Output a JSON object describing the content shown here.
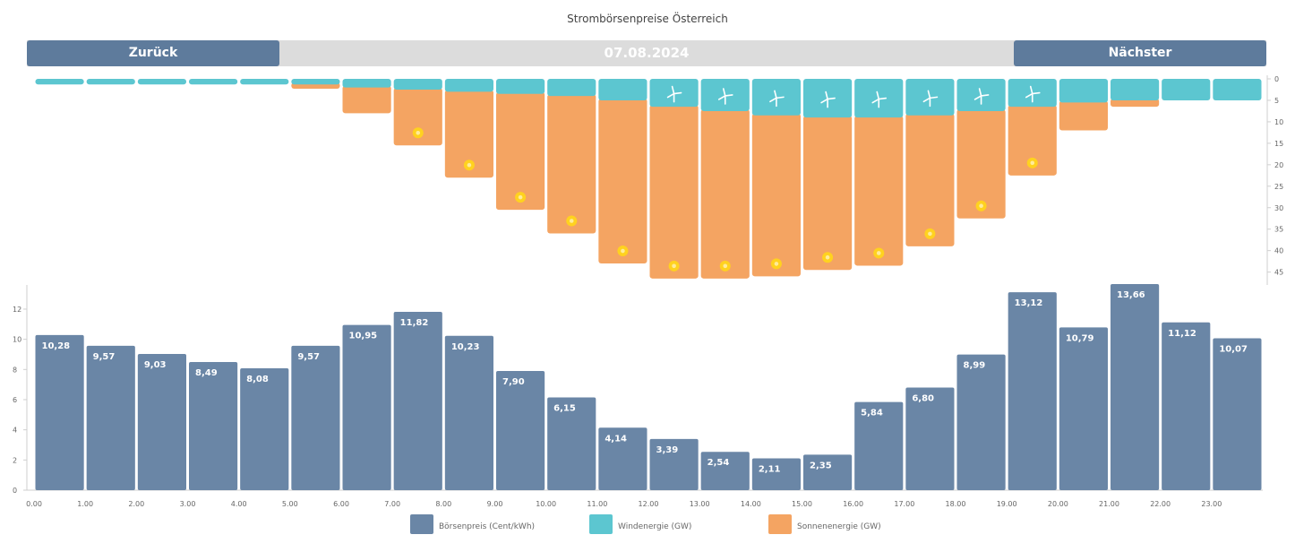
{
  "page": {
    "title": "Strombörsenpreise Österreich"
  },
  "nav": {
    "prev_label": "Zurück",
    "date": "07.08.2024",
    "next_label": "Nächster"
  },
  "chart_data": [
    {
      "type": "bar",
      "title": "",
      "categories": [
        "0:00",
        "1:00",
        "2:00",
        "3:00",
        "4:00",
        "5:00",
        "6:00",
        "7:00",
        "8:00",
        "9:00",
        "10:00",
        "11:00",
        "12:00",
        "13:00",
        "14:00",
        "15:00",
        "16:00",
        "17:00",
        "18:00",
        "19:00",
        "20:00",
        "21:00",
        "22:00",
        "23:00"
      ],
      "x_tick_labels": [
        "0.00",
        "1.00",
        "2.00",
        "3.00",
        "4.00",
        "5.00",
        "6.00",
        "7.00",
        "8.00",
        "9.00",
        "10.00",
        "11.00",
        "12.00",
        "13.00",
        "14.00",
        "15.00",
        "16.00",
        "17.00",
        "18.00",
        "19.00",
        "20.00",
        "21.00",
        "22.00",
        "23.00"
      ],
      "series": [
        {
          "name": "Börsenpreis (Cent/kWh)",
          "values": [
            10.28,
            9.57,
            9.03,
            8.49,
            8.08,
            9.57,
            10.95,
            11.82,
            10.23,
            7.9,
            6.15,
            4.14,
            3.39,
            2.54,
            2.11,
            2.35,
            5.84,
            6.8,
            8.99,
            13.12,
            10.79,
            13.66,
            11.12,
            10.07
          ],
          "labels": [
            "10,28",
            "9,57",
            "9,03",
            "8,49",
            "8,08",
            "9,57",
            "10,95",
            "11,82",
            "10,23",
            "7,90",
            "6,15",
            "4,14",
            "3,39",
            "2,54",
            "2,11",
            "2,35",
            "5,84",
            "6,80",
            "8,99",
            "13,12",
            "10,79",
            "13,66",
            "11,12",
            "10,07"
          ]
        }
      ],
      "ylim": [
        0,
        14
      ],
      "y_ticks": [
        0,
        2,
        4,
        6,
        8,
        10,
        12
      ],
      "grid": false
    },
    {
      "type": "bar",
      "title": "",
      "categories": [
        "0:00",
        "1:00",
        "2:00",
        "3:00",
        "4:00",
        "5:00",
        "6:00",
        "7:00",
        "8:00",
        "9:00",
        "10:00",
        "11:00",
        "12:00",
        "13:00",
        "14:00",
        "15:00",
        "16:00",
        "17:00",
        "18:00",
        "19:00",
        "20:00",
        "21:00",
        "22:00",
        "23:00"
      ],
      "orientation": "downward-stacked",
      "series": [
        {
          "name": "Windenergie (GW)",
          "values": [
            1.3,
            1.3,
            1.3,
            1.3,
            1.3,
            1.3,
            2.0,
            2.5,
            3.0,
            3.5,
            4.0,
            5.0,
            6.5,
            7.5,
            8.5,
            9.0,
            9.0,
            8.5,
            7.5,
            6.5,
            5.5,
            5.0,
            5.0,
            5.0
          ]
        },
        {
          "name": "Sonnenenergie (GW)",
          "values": [
            0,
            0,
            0,
            0,
            0,
            1.0,
            6.0,
            13.0,
            20.0,
            27.0,
            32.0,
            38.0,
            40.0,
            39.0,
            37.5,
            35.5,
            34.5,
            30.5,
            25.0,
            16.0,
            6.5,
            1.5,
            0,
            0
          ]
        }
      ],
      "ylim": [
        0,
        48
      ],
      "y_ticks": [
        0,
        5,
        10,
        15,
        20,
        25,
        30,
        35,
        40,
        45
      ],
      "icons": {
        "wind": "wind-turbine-icon",
        "sun": "sun-icon"
      }
    }
  ],
  "legend": [
    {
      "label": "Börsenpreis (Cent/kWh)",
      "color": "#6a86a6"
    },
    {
      "label": "Windenergie (GW)",
      "color": "#5cc6d0"
    },
    {
      "label": "Sonnenenergie (GW)",
      "color": "#f4a462"
    }
  ],
  "colors": {
    "price": "#6a86a6",
    "wind": "#5cc6d0",
    "solar": "#f4a462",
    "nav": "#5e7b9c",
    "date_bar": "#dcdcdc",
    "sun_dot": "#ffd21f"
  }
}
